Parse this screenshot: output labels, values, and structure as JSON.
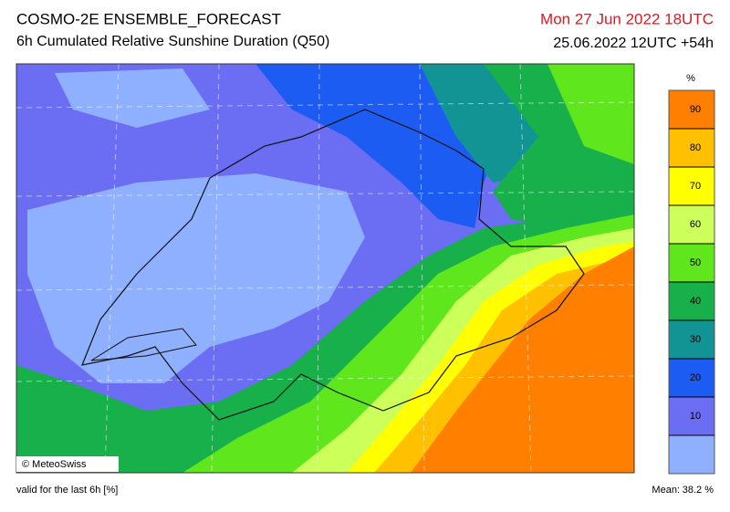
{
  "header": {
    "title": "COSMO-2E ENSEMBLE_FORECAST",
    "subtitle": "6h Cumulated Relative Sunshine Duration (Q50)",
    "valid_time": "Mon 27 Jun 2022 18UTC",
    "run": "25.06.2022 12UTC +54h"
  },
  "colorbar": {
    "unit": "%",
    "lim": [
      0,
      100
    ],
    "ticks": [
      10,
      20,
      30,
      40,
      50,
      60,
      70,
      80,
      90
    ],
    "colors": [
      "#8fb0ff",
      "#6b6df2",
      "#1d5cf2",
      "#139494",
      "#18b04a",
      "#5fe61c",
      "#ccff5a",
      "#ffff00",
      "#ffc000",
      "#ff8000"
    ]
  },
  "map": {
    "credit": "© MeteoSwiss"
  },
  "footer": {
    "note": "valid for the last 6h [%]",
    "mean_label": "Mean:",
    "mean": "38.2 %"
  }
}
